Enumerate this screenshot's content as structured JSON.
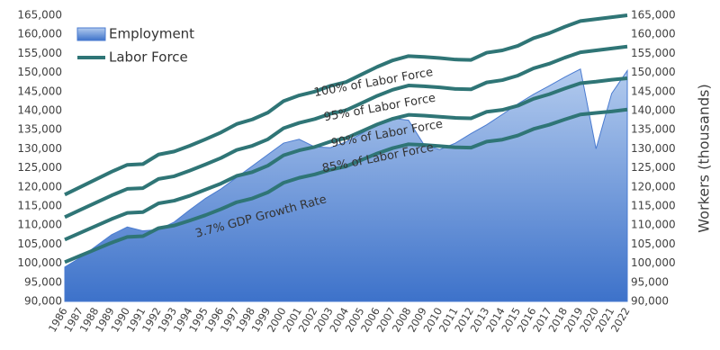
{
  "chart_data": {
    "type": "area-line",
    "y_axis_label": "Workers (thousands)",
    "categories": [
      "1986",
      "1987",
      "1988",
      "1989",
      "1990",
      "1991",
      "1992",
      "1993",
      "1994",
      "1995",
      "1996",
      "1997",
      "1998",
      "1999",
      "2000",
      "2001",
      "2002",
      "2003",
      "2004",
      "2005",
      "2006",
      "2007",
      "2008",
      "2009",
      "2010",
      "2011",
      "2012",
      "2013",
      "2014",
      "2015",
      "2016",
      "2017",
      "2018",
      "2019",
      "2020",
      "2021",
      "2022"
    ],
    "ylim": [
      90000,
      165000
    ],
    "yticks": [
      {
        "value": 90000,
        "label": "90,000"
      },
      {
        "value": 95000,
        "label": "95,000"
      },
      {
        "value": 100000,
        "label": "100,000"
      },
      {
        "value": 105000,
        "label": "105,000"
      },
      {
        "value": 110000,
        "label": "110,000"
      },
      {
        "value": 115000,
        "label": "115,000"
      },
      {
        "value": 120000,
        "label": "120,000"
      },
      {
        "value": 125000,
        "label": "125,000"
      },
      {
        "value": 130000,
        "label": "130,000"
      },
      {
        "value": 135000,
        "label": "135,000"
      },
      {
        "value": 140000,
        "label": "140,000"
      },
      {
        "value": 145000,
        "label": "145,000"
      },
      {
        "value": 150000,
        "label": "150,000"
      },
      {
        "value": 155000,
        "label": "155,000"
      },
      {
        "value": 160000,
        "label": "160,000"
      },
      {
        "value": 165000,
        "label": "165,000"
      }
    ],
    "y2lim": [
      90000,
      165000
    ],
    "y2ticks": [
      {
        "value": 90000,
        "label": "90,000"
      },
      {
        "value": 95000,
        "label": "95,000"
      },
      {
        "value": 100000,
        "label": "100,000"
      },
      {
        "value": 105000,
        "label": "105,000"
      },
      {
        "value": 110000,
        "label": "110,000"
      },
      {
        "value": 115000,
        "label": "115,000"
      },
      {
        "value": 120000,
        "label": "120,000"
      },
      {
        "value": 125000,
        "label": "125,000"
      },
      {
        "value": 130000,
        "label": "130,000"
      },
      {
        "value": 135000,
        "label": "135,000"
      },
      {
        "value": 140000,
        "label": "140,000"
      },
      {
        "value": 145000,
        "label": "145,000"
      },
      {
        "value": 150000,
        "label": "150,000"
      },
      {
        "value": 155000,
        "label": "155,000"
      },
      {
        "value": 160000,
        "label": "160,000"
      },
      {
        "value": 165000,
        "label": "165,000"
      }
    ],
    "series": [
      {
        "name": "Employment",
        "type": "area",
        "color": "#4a7bd0",
        "values": [
          99000,
          101500,
          104500,
          107500,
          109500,
          108500,
          108800,
          110800,
          114000,
          117000,
          119500,
          122500,
          125500,
          128500,
          131500,
          132500,
          130500,
          130300,
          131800,
          134000,
          136500,
          138000,
          137500,
          131000,
          129800,
          131500,
          134000,
          136300,
          139000,
          141800,
          144300,
          146500,
          148800,
          150900,
          130000,
          144500,
          150500
        ]
      },
      {
        "name": "Labor Force",
        "type": "line",
        "color": "#2f7576",
        "lines": [
          {
            "label": "100% of Labor Force",
            "values": [
              118000,
              120000,
              122000,
              124000,
              125800,
              126000,
              128500,
              129300,
              130800,
              132500,
              134300,
              136500,
              137700,
              139500,
              142500,
              144000,
              145000,
              146500,
              147500,
              149500,
              151500,
              153200,
              154300,
              154100,
              153800,
              153400,
              153300,
              155200,
              155800,
              157000,
              159000,
              160300,
              162000,
              163500,
              164000,
              164500,
              165000
            ]
          },
          {
            "label": "95% of Labor Force",
            "values": [
              112100,
              114000,
              115900,
              117800,
              119500,
              119700,
              122100,
              122800,
              124300,
              125900,
              127600,
              129700,
              130800,
              132500,
              135400,
              136800,
              137800,
              139200,
              140100,
              142000,
              143900,
              145500,
              146600,
              146400,
              146100,
              145700,
              145600,
              147400,
              148000,
              149200,
              151100,
              152300,
              153900,
              155300,
              155800,
              156300,
              156800
            ]
          },
          {
            "label": "90% of Labor Force",
            "values": [
              106200,
              108000,
              109800,
              111600,
              113200,
              113400,
              115700,
              116400,
              117700,
              119300,
              120900,
              122900,
              123900,
              125600,
              128300,
              129600,
              130500,
              131900,
              132800,
              134600,
              136400,
              137900,
              138900,
              138700,
              138400,
              138100,
              138000,
              139700,
              140200,
              141300,
              143100,
              144300,
              145800,
              147200,
              147600,
              148100,
              148500
            ]
          },
          {
            "label": "85% of Labor Force",
            "values": [
              100300,
              102000,
              103700,
              105400,
              106900,
              107100,
              109200,
              109900,
              111200,
              112600,
              114200,
              116000,
              117000,
              118600,
              121100,
              122400,
              123300,
              124500,
              125400,
              127100,
              128800,
              130200,
              131200,
              131000,
              130700,
              130400,
              130300,
              131900,
              132400,
              133500,
              135200,
              136300,
              137700,
              139000,
              139400,
              139800,
              140300
            ]
          }
        ]
      }
    ],
    "annotations": [
      "3.7% GDP Growth Rate"
    ]
  }
}
